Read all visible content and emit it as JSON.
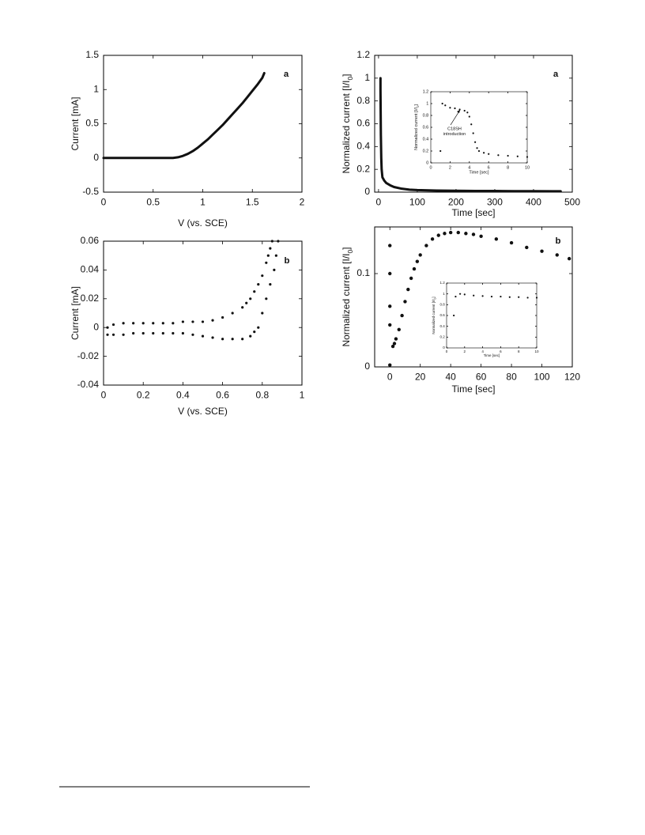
{
  "chart_data": [
    {
      "type": "line",
      "xlabel": "V (vs. SCE)",
      "ylabel": [
        "Current [mA]"
      ],
      "panel_label": "a",
      "xlim": [
        0,
        2
      ],
      "ylim": [
        -0.5,
        1.5
      ],
      "xticks": [
        0,
        0.5,
        1,
        1.5,
        2
      ],
      "yticks": [
        -0.5,
        0,
        0.5,
        1,
        1.5
      ],
      "x": [
        0,
        0.1,
        0.2,
        0.3,
        0.4,
        0.5,
        0.6,
        0.7,
        0.75,
        0.8,
        0.85,
        0.9,
        0.95,
        1.0,
        1.05,
        1.1,
        1.15,
        1.2,
        1.25,
        1.3,
        1.35,
        1.4,
        1.45,
        1.5,
        1.55,
        1.6,
        1.62
      ],
      "y": [
        0,
        0,
        0,
        0,
        0,
        0,
        0,
        0,
        0.01,
        0.03,
        0.06,
        0.1,
        0.15,
        0.21,
        0.27,
        0.34,
        0.41,
        0.48,
        0.56,
        0.64,
        0.72,
        0.8,
        0.89,
        0.98,
        1.07,
        1.17,
        1.24
      ]
    },
    {
      "type": "line",
      "xlabel": "Time [sec]",
      "ylabel": [
        "Normalized current [I/I",
        "0",
        "]"
      ],
      "panel_label": "a",
      "xlim": [
        -10,
        500
      ],
      "ylim": [
        0,
        1.2
      ],
      "xticks": [
        0,
        100,
        200,
        300,
        400,
        500
      ],
      "yticks": [
        0,
        0.2,
        0.4,
        0.6,
        0.8,
        1,
        1.2
      ],
      "x": [
        5,
        5,
        6,
        7,
        8,
        10,
        15,
        20,
        30,
        40,
        60,
        80,
        100,
        150,
        200,
        250,
        300,
        350,
        400,
        450,
        470
      ],
      "y": [
        1,
        0.9,
        0.5,
        0.3,
        0.2,
        0.13,
        0.1,
        0.08,
        0.06,
        0.045,
        0.03,
        0.022,
        0.018,
        0.014,
        0.012,
        0.01,
        0.01,
        0.009,
        0.009,
        0.008,
        0.008
      ]
    },
    {
      "type": "scatter",
      "xlabel": "Time [sec]",
      "ylabel": [
        "Normalized current [I/I",
        "0",
        "]"
      ],
      "annotations": [
        "C18SH",
        "introduction"
      ],
      "xlim": [
        0,
        10
      ],
      "ylim": [
        0,
        1.2
      ],
      "xticks": [
        0,
        2,
        4,
        6,
        8,
        10
      ],
      "yticks": [
        0,
        0.2,
        0.4,
        0.6,
        0.8,
        1,
        1.2
      ],
      "x": [
        1,
        1.2,
        1.5,
        2,
        2.5,
        3,
        3.5,
        3.8,
        4,
        4.2,
        4.4,
        4.6,
        4.8,
        5,
        5.5,
        6,
        7,
        8,
        9,
        10
      ],
      "y": [
        0.2,
        1.0,
        0.97,
        0.93,
        0.92,
        0.9,
        0.88,
        0.85,
        0.78,
        0.65,
        0.5,
        0.35,
        0.25,
        0.2,
        0.17,
        0.15,
        0.13,
        0.12,
        0.11,
        0.1
      ]
    },
    {
      "type": "scatter",
      "xlabel": "V (vs. SCE)",
      "ylabel": [
        "Current [mA]"
      ],
      "panel_label": "b",
      "xlim": [
        0,
        1
      ],
      "ylim": [
        -0.04,
        0.06
      ],
      "xticks": [
        0,
        0.2,
        0.4,
        0.6,
        0.8,
        1
      ],
      "yticks": [
        -0.04,
        -0.02,
        0,
        0.02,
        0.04,
        0.06
      ],
      "x": [
        0.02,
        0.05,
        0.1,
        0.15,
        0.2,
        0.25,
        0.3,
        0.35,
        0.4,
        0.45,
        0.5,
        0.55,
        0.6,
        0.65,
        0.7,
        0.72,
        0.74,
        0.76,
        0.78,
        0.8,
        0.82,
        0.83,
        0.84,
        0.85,
        0.02,
        0.05,
        0.1,
        0.15,
        0.2,
        0.25,
        0.3,
        0.35,
        0.4,
        0.45,
        0.5,
        0.55,
        0.6,
        0.65,
        0.7,
        0.74,
        0.76,
        0.78,
        0.8,
        0.82,
        0.84,
        0.86,
        0.87,
        0.88
      ],
      "y": [
        0,
        0.002,
        0.003,
        0.003,
        0.003,
        0.003,
        0.003,
        0.003,
        0.004,
        0.004,
        0.004,
        0.005,
        0.007,
        0.01,
        0.014,
        0.017,
        0.02,
        0.025,
        0.03,
        0.036,
        0.045,
        0.05,
        0.055,
        0.06,
        -0.005,
        -0.005,
        -0.005,
        -0.004,
        -0.004,
        -0.004,
        -0.004,
        -0.004,
        -0.004,
        -0.005,
        -0.006,
        -0.007,
        -0.008,
        -0.008,
        -0.008,
        -0.006,
        -0.003,
        0.0,
        0.01,
        0.02,
        0.03,
        0.04,
        0.05,
        0.06
      ]
    },
    {
      "type": "scatter",
      "xlabel": "Time [sec]",
      "ylabel": [
        "Normalized current [I/I",
        "0",
        "]"
      ],
      "panel_label": "b",
      "xlim": [
        -10,
        120
      ],
      "ylim": [
        0,
        0.15
      ],
      "xticks": [
        0,
        20,
        40,
        60,
        80,
        100,
        120
      ],
      "yticks": [
        0,
        0.1
      ],
      "x": [
        0,
        0,
        0,
        0,
        0,
        2,
        3,
        4,
        6,
        8,
        10,
        12,
        14,
        16,
        18,
        20,
        24,
        28,
        32,
        36,
        40,
        45,
        50,
        55,
        60,
        70,
        80,
        90,
        100,
        110,
        118
      ],
      "y": [
        0.13,
        0.1,
        0.065,
        0.045,
        0.002,
        0.022,
        0.025,
        0.03,
        0.04,
        0.055,
        0.07,
        0.083,
        0.095,
        0.105,
        0.113,
        0.12,
        0.13,
        0.137,
        0.141,
        0.143,
        0.144,
        0.144,
        0.143,
        0.142,
        0.14,
        0.137,
        0.133,
        0.128,
        0.124,
        0.12,
        0.116
      ]
    },
    {
      "type": "scatter",
      "xlabel": "Time [sec]",
      "ylabel": [
        "Normalized current [I/I",
        "0",
        "]"
      ],
      "xlim": [
        0,
        10
      ],
      "ylim": [
        0,
        1.2
      ],
      "xticks": [
        0,
        2,
        4,
        6,
        8,
        10
      ],
      "yticks": [
        0,
        0.2,
        0.4,
        0.6,
        0.8,
        1,
        1.2
      ],
      "x": [
        0.8,
        1,
        1.5,
        2,
        3,
        4,
        5,
        6,
        7,
        8,
        9,
        10
      ],
      "y": [
        0.6,
        0.95,
        1.0,
        0.99,
        0.97,
        0.96,
        0.95,
        0.95,
        0.94,
        0.94,
        0.93,
        0.93
      ]
    }
  ]
}
